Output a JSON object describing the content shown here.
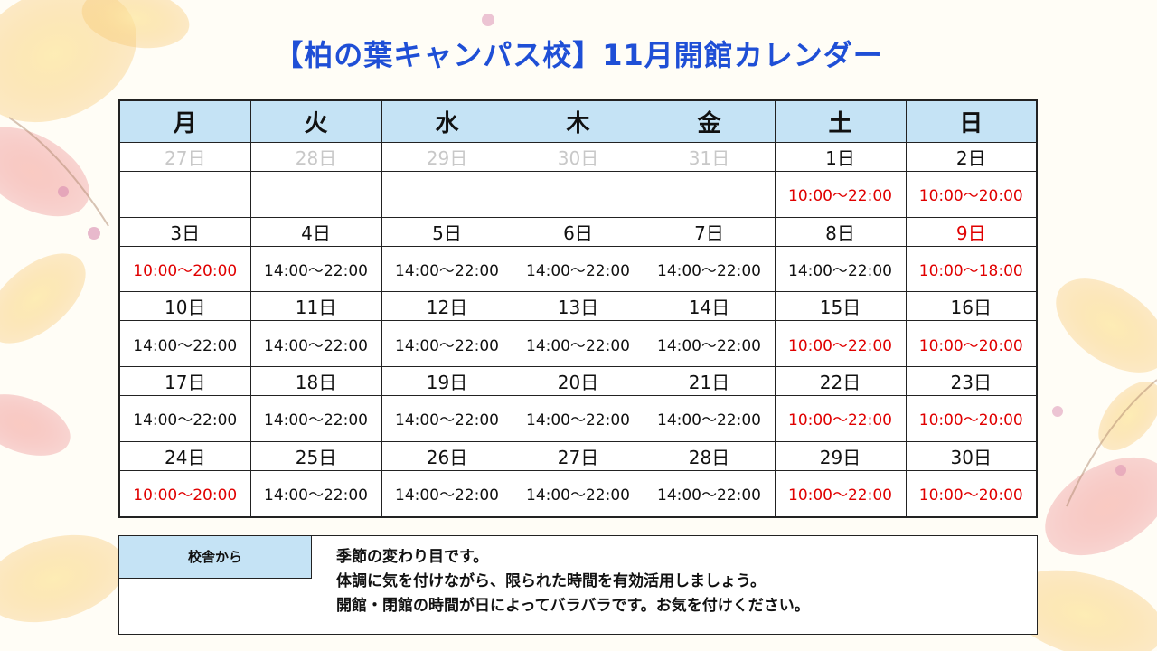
{
  "title": "【柏の葉キャンパス校】11月開館カレンダー",
  "weekdays": [
    "月",
    "火",
    "水",
    "木",
    "金",
    "土",
    "日"
  ],
  "weeks": [
    {
      "dates": [
        "27日",
        "28日",
        "29日",
        "30日",
        "31日",
        "1日",
        "2日"
      ],
      "hours": [
        "",
        "",
        "",
        "",
        "",
        "10:00～22:00",
        "10:00～20:00"
      ]
    },
    {
      "dates": [
        "3日",
        "4日",
        "5日",
        "6日",
        "7日",
        "8日",
        "9日"
      ],
      "hours": [
        "10:00～20:00",
        "14:00～22:00",
        "14:00～22:00",
        "14:00～22:00",
        "14:00～22:00",
        "14:00～22:00",
        "10:00～18:00"
      ]
    },
    {
      "dates": [
        "10日",
        "11日",
        "12日",
        "13日",
        "14日",
        "15日",
        "16日"
      ],
      "hours": [
        "14:00～22:00",
        "14:00～22:00",
        "14:00～22:00",
        "14:00～22:00",
        "14:00～22:00",
        "10:00～22:00",
        "10:00～20:00"
      ]
    },
    {
      "dates": [
        "17日",
        "18日",
        "19日",
        "20日",
        "21日",
        "22日",
        "23日"
      ],
      "hours": [
        "14:00～22:00",
        "14:00～22:00",
        "14:00～22:00",
        "14:00～22:00",
        "14:00～22:00",
        "10:00～22:00",
        "10:00～20:00"
      ]
    },
    {
      "dates": [
        "24日",
        "25日",
        "26日",
        "27日",
        "28日",
        "29日",
        "30日"
      ],
      "hours": [
        "10:00～20:00",
        "14:00～22:00",
        "14:00～22:00",
        "14:00～22:00",
        "14:00～22:00",
        "10:00～22:00",
        "10:00～20:00"
      ]
    }
  ],
  "note": {
    "label": "校舎から",
    "lines": [
      "季節の変わり目です。",
      "体調に気を付けながら、限られた時間を有効活用しましょう。",
      "開館・閉館の時間が日によってバラバラです。お気を付けください。"
    ]
  },
  "colors": {
    "title": "#1f4fd6",
    "header_bg": "#c5e3f5",
    "saturday": "#0b73c4",
    "sunday_holiday": "#e00000",
    "prev_month": "#c8c8c8"
  }
}
